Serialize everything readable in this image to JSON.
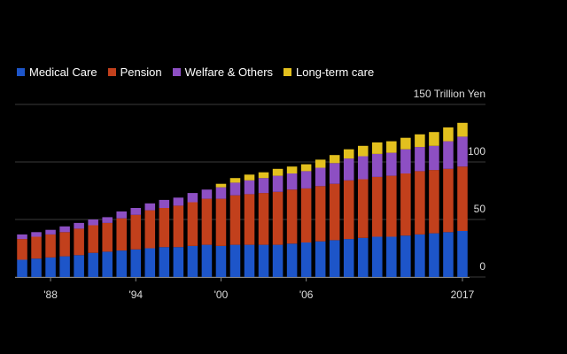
{
  "chart_data": {
    "type": "bar",
    "stacked": true,
    "unit_label": "150 Trillion Yen",
    "ylim": [
      0,
      150
    ],
    "yticks": [
      {
        "value": 0,
        "label": "0"
      },
      {
        "value": 50,
        "label": "50"
      },
      {
        "value": 100,
        "label": "100"
      },
      {
        "value": 150,
        "label": "150 Trillion Yen"
      }
    ],
    "categories": [
      1986,
      1987,
      1988,
      1989,
      1990,
      1991,
      1992,
      1993,
      1994,
      1995,
      1996,
      1997,
      1998,
      1999,
      2000,
      2001,
      2002,
      2003,
      2004,
      2005,
      2006,
      2007,
      2008,
      2009,
      2010,
      2011,
      2012,
      2013,
      2014,
      2015,
      2016,
      2017
    ],
    "xticks": [
      {
        "year": 1988,
        "label": "'88"
      },
      {
        "year": 1994,
        "label": "'94"
      },
      {
        "year": 2000,
        "label": "'00"
      },
      {
        "year": 2006,
        "label": "'06"
      },
      {
        "year": 2017,
        "label": "2017"
      }
    ],
    "legend_position": "top-left",
    "series": [
      {
        "name": "Medical Care",
        "color": "#1d55c9",
        "values": [
          15,
          16,
          17,
          18,
          19,
          21,
          22,
          23,
          24,
          25,
          26,
          26,
          27,
          28,
          27,
          28,
          28,
          28,
          28,
          29,
          30,
          31,
          32,
          33,
          34,
          35,
          35,
          36,
          37,
          38,
          39,
          40
        ]
      },
      {
        "name": "Pension",
        "color": "#c2401c",
        "values": [
          18,
          19,
          20,
          21,
          23,
          24,
          25,
          28,
          30,
          33,
          34,
          36,
          38,
          40,
          41,
          43,
          44,
          45,
          46,
          47,
          47,
          48,
          49,
          51,
          51,
          52,
          53,
          54,
          55,
          55,
          55,
          56
        ]
      },
      {
        "name": "Welfare & Others",
        "color": "#8d4fc3",
        "values": [
          4,
          4,
          4,
          5,
          5,
          5,
          5,
          6,
          6,
          6,
          7,
          7,
          8,
          8,
          10,
          11,
          12,
          13,
          14,
          14,
          15,
          16,
          18,
          19,
          20,
          20,
          20,
          21,
          21,
          21,
          24,
          26
        ]
      },
      {
        "name": "Long-term care",
        "color": "#e3c01e",
        "values": [
          0,
          0,
          0,
          0,
          0,
          0,
          0,
          0,
          0,
          0,
          0,
          0,
          0,
          0,
          3,
          4,
          5,
          5,
          6,
          6,
          6,
          7,
          7,
          8,
          9,
          10,
          10,
          10,
          11,
          12,
          12,
          12
        ]
      }
    ]
  }
}
